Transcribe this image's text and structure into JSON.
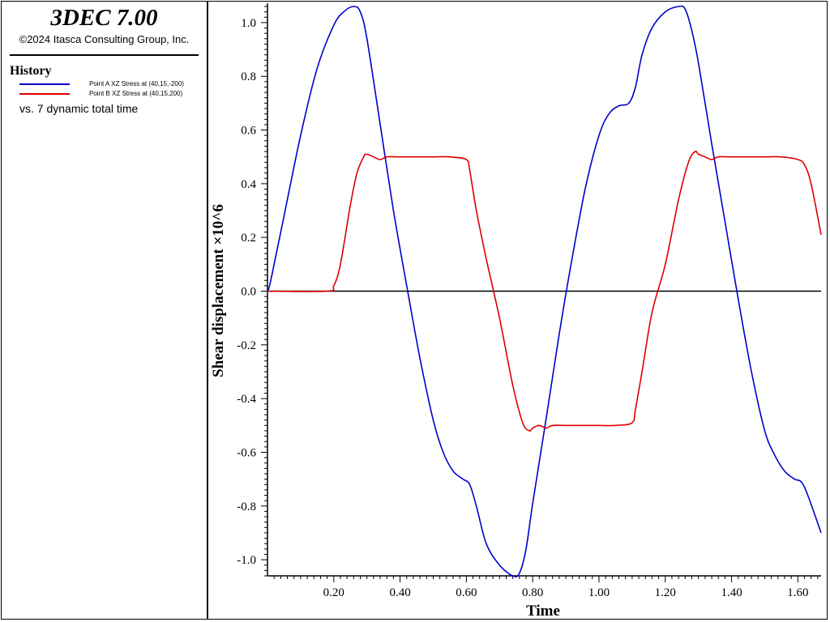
{
  "header": {
    "app_title": "3DEC 7.00",
    "copyright": "©2024 Itasca Consulting Group, Inc."
  },
  "sidebar": {
    "section_title": "History",
    "legend": [
      {
        "label": "Point A XZ Stress at (40,15,-200)",
        "color": "#0000cc"
      },
      {
        "label": "Point B XZ Stress at (40,15,200)",
        "color": "#dd0000"
      }
    ],
    "vs_label": "vs. 7 dynamic total time"
  },
  "chart_data": {
    "type": "line",
    "xlabel": "Time",
    "ylabel": "Shear displacement ×10^6",
    "xlim": [
      0.0,
      1.67
    ],
    "ylim": [
      -1.06,
      1.06
    ],
    "xticks": [
      0.2,
      0.4,
      0.6,
      0.8,
      1.0,
      1.2,
      1.4,
      1.6
    ],
    "xtick_labels": [
      "0.20",
      "0.40",
      "0.60",
      "0.80",
      "1.00",
      "1.20",
      "1.40",
      "1.60"
    ],
    "yticks": [
      -1.0,
      -0.8,
      -0.6,
      -0.4,
      -0.2,
      0.0,
      0.2,
      0.4,
      0.6,
      0.8,
      1.0
    ],
    "ytick_labels": [
      "-1.0",
      "-0.8",
      "-0.6",
      "-0.4",
      "-0.2",
      "0.0",
      "0.2",
      "0.4",
      "0.6",
      "0.8",
      "1.0"
    ],
    "zero_line": true,
    "grid": false,
    "series": [
      {
        "name": "Point A XZ Stress at (40,15,-200)",
        "color": "#0000cc",
        "x": [
          0.0,
          0.01,
          0.05,
          0.1,
          0.15,
          0.2,
          0.23,
          0.26,
          0.28,
          0.3,
          0.34,
          0.38,
          0.42,
          0.46,
          0.5,
          0.53,
          0.56,
          0.59,
          0.61,
          0.63,
          0.66,
          0.7,
          0.74,
          0.76,
          0.78,
          0.8,
          0.84,
          0.88,
          0.92,
          0.96,
          1.0,
          1.03,
          1.06,
          1.09,
          1.11,
          1.13,
          1.16,
          1.2,
          1.24,
          1.26,
          1.28,
          1.3,
          1.34,
          1.38,
          1.42,
          1.46,
          1.5,
          1.53,
          1.56,
          1.59,
          1.61,
          1.63,
          1.67
        ],
        "y": [
          0.0,
          0.04,
          0.28,
          0.58,
          0.83,
          0.99,
          1.04,
          1.06,
          1.04,
          0.94,
          0.62,
          0.3,
          0.02,
          -0.25,
          -0.48,
          -0.6,
          -0.67,
          -0.7,
          -0.72,
          -0.8,
          -0.94,
          -1.02,
          -1.06,
          -1.05,
          -0.96,
          -0.79,
          -0.48,
          -0.16,
          0.13,
          0.39,
          0.58,
          0.66,
          0.69,
          0.7,
          0.76,
          0.88,
          0.98,
          1.04,
          1.06,
          1.05,
          0.97,
          0.85,
          0.55,
          0.26,
          -0.03,
          -0.3,
          -0.52,
          -0.61,
          -0.67,
          -0.7,
          -0.71,
          -0.76,
          -0.9
        ]
      },
      {
        "name": "Point B XZ Stress at (40,15,200)",
        "color": "#dd0000",
        "x": [
          0.0,
          0.18,
          0.2,
          0.22,
          0.25,
          0.27,
          0.29,
          0.3,
          0.32,
          0.34,
          0.36,
          0.4,
          0.45,
          0.5,
          0.55,
          0.6,
          0.61,
          0.63,
          0.66,
          0.7,
          0.74,
          0.77,
          0.79,
          0.8,
          0.82,
          0.84,
          0.86,
          0.9,
          0.95,
          1.0,
          1.05,
          1.1,
          1.11,
          1.13,
          1.16,
          1.2,
          1.24,
          1.27,
          1.29,
          1.3,
          1.32,
          1.34,
          1.36,
          1.4,
          1.45,
          1.5,
          1.55,
          1.6,
          1.62,
          1.64,
          1.67
        ],
        "y": [
          0.0,
          0.0,
          0.02,
          0.1,
          0.32,
          0.44,
          0.5,
          0.51,
          0.5,
          0.49,
          0.5,
          0.5,
          0.5,
          0.5,
          0.5,
          0.49,
          0.45,
          0.3,
          0.12,
          -0.1,
          -0.35,
          -0.49,
          -0.52,
          -0.51,
          -0.5,
          -0.51,
          -0.5,
          -0.5,
          -0.5,
          -0.5,
          -0.5,
          -0.49,
          -0.44,
          -0.3,
          -0.08,
          0.1,
          0.34,
          0.48,
          0.52,
          0.51,
          0.5,
          0.49,
          0.5,
          0.5,
          0.5,
          0.5,
          0.5,
          0.49,
          0.47,
          0.4,
          0.21
        ]
      }
    ]
  }
}
